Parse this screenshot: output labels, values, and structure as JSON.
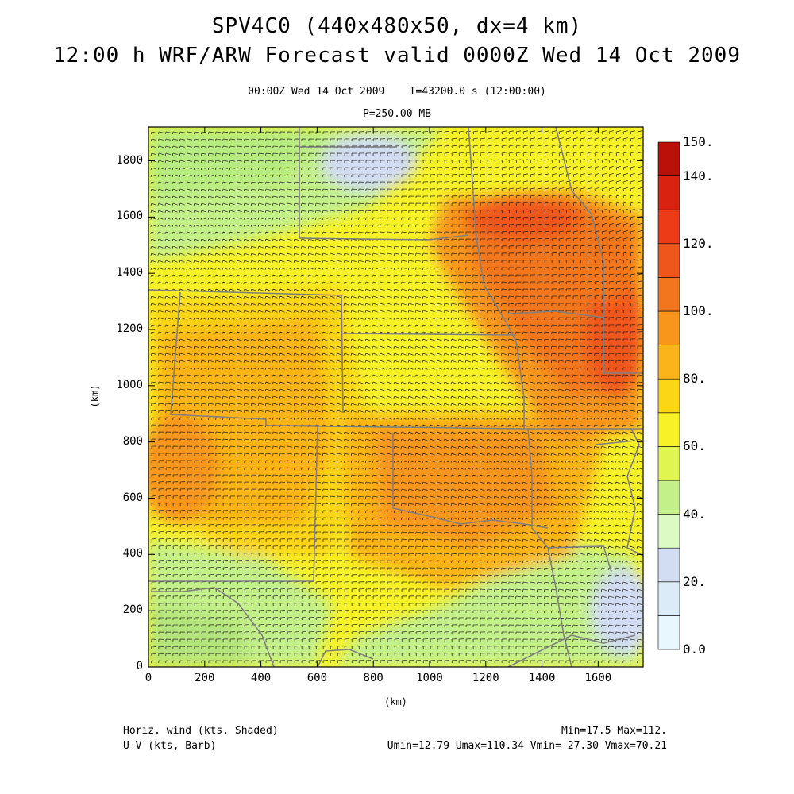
{
  "header": {
    "title_line1": "SPV4C0 (440x480x50, dx=4 km)",
    "title_line2": "12:00 h WRF/ARW Forecast valid 0000Z Wed 14 Oct 2009",
    "valid_time": "00:00Z Wed 14 Oct 2009",
    "model_time": "T=43200.0 s (12:00:00)",
    "level": "P=250.00 MB"
  },
  "axes": {
    "x_label": "(km)",
    "y_label": "(km)",
    "x_ticks": [
      "0",
      "200",
      "400",
      "600",
      "800",
      "1000",
      "1200",
      "1400",
      "1600"
    ],
    "y_ticks": [
      "0",
      "200",
      "400",
      "600",
      "800",
      "1000",
      "1200",
      "1400",
      "1600",
      "1800"
    ],
    "x_range_km": [
      0,
      1760
    ],
    "y_range_km": [
      0,
      1920
    ]
  },
  "colorbar": {
    "labels": [
      "0.0",
      "20.",
      "40.",
      "60.",
      "80.",
      "100.",
      "120.",
      "140.",
      "150."
    ],
    "bins": [
      {
        "min": 0,
        "max": 10,
        "color": "#e8f6fd"
      },
      {
        "min": 10,
        "max": 20,
        "color": "#dcebf8"
      },
      {
        "min": 20,
        "max": 30,
        "color": "#d2dcf2"
      },
      {
        "min": 30,
        "max": 40,
        "color": "#dcfac4"
      },
      {
        "min": 40,
        "max": 50,
        "color": "#c4f08a"
      },
      {
        "min": 50,
        "max": 60,
        "color": "#e1f550"
      },
      {
        "min": 60,
        "max": 70,
        "color": "#f7f227"
      },
      {
        "min": 70,
        "max": 80,
        "color": "#fbd616"
      },
      {
        "min": 80,
        "max": 90,
        "color": "#fbb419"
      },
      {
        "min": 90,
        "max": 100,
        "color": "#f7961b"
      },
      {
        "min": 100,
        "max": 110,
        "color": "#f2761e"
      },
      {
        "min": 110,
        "max": 120,
        "color": "#ef561c"
      },
      {
        "min": 120,
        "max": 130,
        "color": "#ed3a17"
      },
      {
        "min": 130,
        "max": 140,
        "color": "#d92210"
      },
      {
        "min": 140,
        "max": 150,
        "color": "#bb0f0a"
      }
    ]
  },
  "footer": {
    "field1": "Horiz. wind (kts, Shaded)",
    "field2": "U-V (kts, Barb)",
    "minmax": "Min=17.5 Max=112.",
    "uv_stats": "Umin=12.79 Umax=110.34 Vmin=-27.30 Vmax=70.21"
  },
  "map_colors": {
    "border": "#808080",
    "barb": "#1a1a1a"
  }
}
